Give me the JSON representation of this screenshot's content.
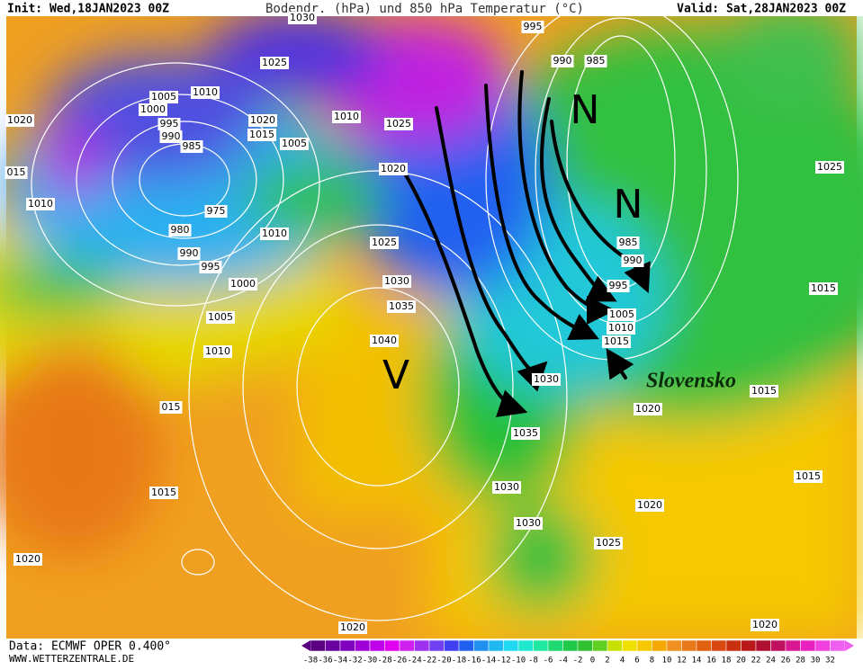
{
  "header": {
    "init": "Init: Wed,18JAN2023 00Z",
    "title": "Bodendr. (hPa) und 850 hPa Temperatur (°C)",
    "valid": "Valid: Sat,28JAN2023 00Z"
  },
  "footer": {
    "source": "Data: ECMWF OPER 0.400°",
    "site": "WWW.WETTERZENTRALE.DE"
  },
  "colorbar": {
    "labels": [
      -38,
      -36,
      -34,
      -32,
      -30,
      -28,
      -26,
      -24,
      -22,
      -20,
      -18,
      -16,
      -14,
      -12,
      -10,
      -8,
      -6,
      -4,
      -2,
      0,
      2,
      4,
      6,
      8,
      10,
      12,
      14,
      16,
      18,
      20,
      22,
      24,
      26,
      28,
      30,
      32
    ]
  },
  "isobar_labels": [
    "1030",
    "995",
    "990",
    "985",
    "1025",
    "1005",
    "1010",
    "1000",
    "995",
    "990",
    "985",
    "1020",
    "1010",
    "1020",
    "1015",
    "1005",
    "1025",
    "015",
    "1010",
    "975",
    "980",
    "990",
    "995",
    "1010",
    "1020",
    "1025",
    "985",
    "990",
    "995",
    "1000",
    "1030",
    "1035",
    "1005",
    "1005",
    "1010",
    "1040",
    "1015",
    "1010",
    "1030",
    "015",
    "1020",
    "1035",
    "1025",
    "1015",
    "1015",
    "1030",
    "1015",
    "1015",
    "1020",
    "1030",
    "1025",
    "1020",
    "1020",
    "1020"
  ],
  "annotations": {
    "region": "Slovensko",
    "marks": [
      "N",
      "N",
      "V"
    ]
  }
}
